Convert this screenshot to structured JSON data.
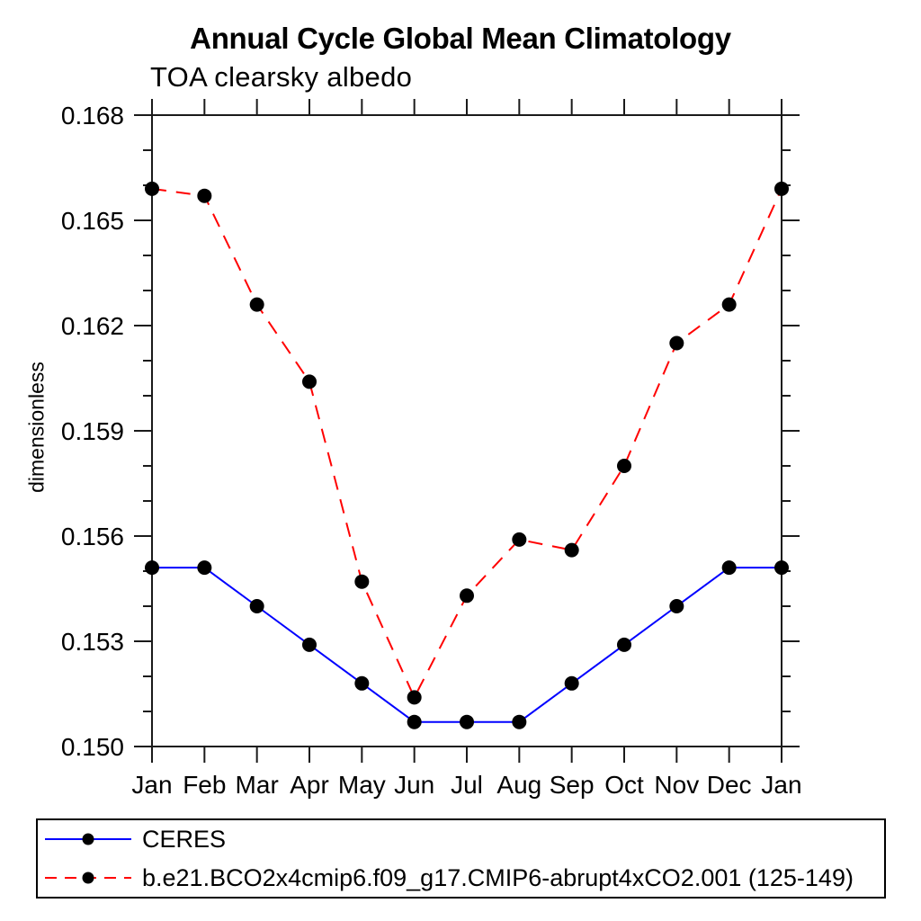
{
  "chart_data": {
    "type": "line",
    "title": "Annual Cycle Global Mean Climatology",
    "subtitle": "TOA clearsky albedo",
    "ylabel": "dimensionless",
    "xlabel": "",
    "categories": [
      "Jan",
      "Feb",
      "Mar",
      "Apr",
      "May",
      "Jun",
      "Jul",
      "Aug",
      "Sep",
      "Oct",
      "Nov",
      "Dec",
      "Jan"
    ],
    "ylim": [
      0.15,
      0.168
    ],
    "y_major_step": 0.003,
    "y_minor_step": 0.001,
    "y_tick_labels": [
      "0.150",
      "0.153",
      "0.156",
      "0.159",
      "0.162",
      "0.165",
      "0.168"
    ],
    "grid": false,
    "legend_position": "bottom-left-box",
    "axis_color": "#000000",
    "marker_color": "#000000",
    "series": [
      {
        "name": "CERES",
        "color": "#0000ff",
        "line_style": "solid",
        "marker": "circle",
        "marker_color": "#000000",
        "values": [
          0.1551,
          0.1551,
          0.154,
          0.1529,
          0.1518,
          0.1507,
          0.1507,
          0.1507,
          0.1518,
          0.1529,
          0.154,
          0.1551,
          0.1551
        ]
      },
      {
        "name": "b.e21.BCO2x4cmip6.f09_g17.CMIP6-abrupt4xCO2.001 (125-149)",
        "color": "#ff0000",
        "line_style": "dashed",
        "marker": "circle",
        "marker_color": "#000000",
        "values": [
          0.1659,
          0.1657,
          0.1626,
          0.1604,
          0.1547,
          0.1514,
          0.1543,
          0.1559,
          0.1556,
          0.158,
          0.1615,
          0.1626,
          0.1659
        ]
      }
    ]
  }
}
